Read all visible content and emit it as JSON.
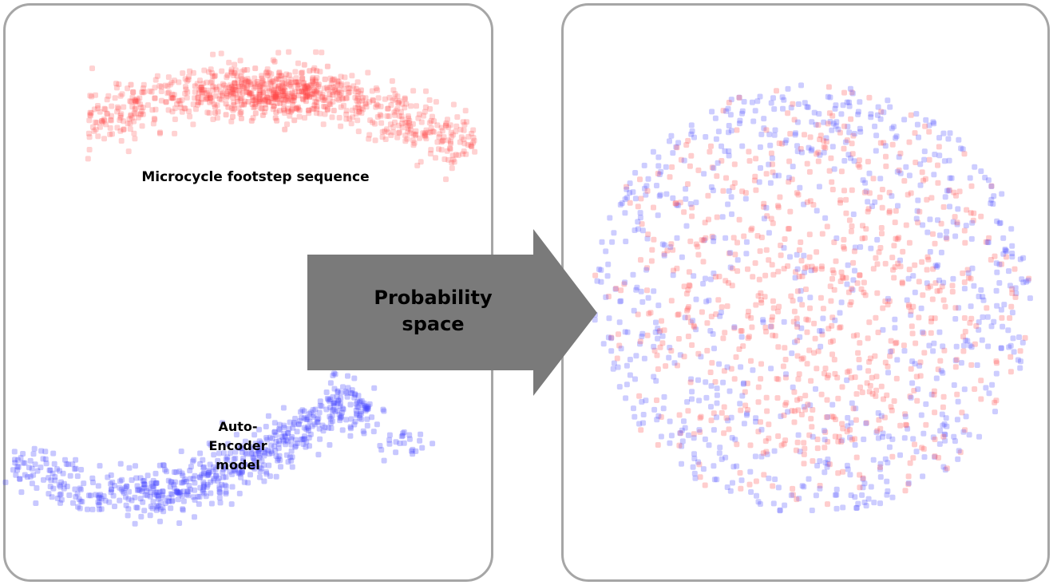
{
  "left_panel": {
    "red_caption": "Microcycle footstep sequence",
    "blue_caption": "Auto-\nEncoder\nmodel"
  },
  "arrow": {
    "label": "Probability\nspace"
  },
  "colors": {
    "red_points": "#ff4a4a",
    "blue_points": "#4a4aff",
    "panel_border": "#a6a6a6",
    "arrow_fill": "#7a7a7a"
  }
}
